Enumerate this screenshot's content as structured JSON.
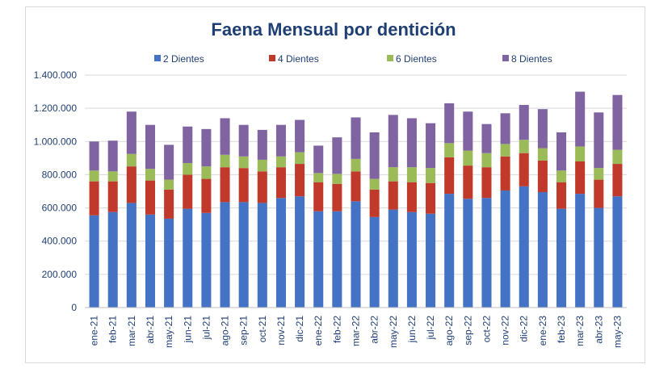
{
  "chart_data": {
    "type": "bar",
    "stacked": true,
    "title": "Faena Mensual por dentición",
    "xlabel": "",
    "ylabel": "",
    "ylim": [
      0,
      1400000
    ],
    "yticks": [
      "0",
      "200.000",
      "400.000",
      "600.000",
      "800.000",
      "1.000.000",
      "1.200.000",
      "1.400.000"
    ],
    "ytick_values": [
      0,
      200000,
      400000,
      600000,
      800000,
      1000000,
      1200000,
      1400000
    ],
    "grid": true,
    "legend_position": "top",
    "categories": [
      "ene-21",
      "feb-21",
      "mar-21",
      "abr-21",
      "may-21",
      "jun-21",
      "jul-21",
      "ago-21",
      "sep-21",
      "oct-21",
      "nov-21",
      "dic-21",
      "ene-22",
      "feb-22",
      "mar-22",
      "abr-22",
      "may-22",
      "jun-22",
      "jul-22",
      "ago-22",
      "sep-22",
      "oct-22",
      "nov-22",
      "dic-22",
      "ene-23",
      "feb-23",
      "mar-23",
      "abr-23",
      "may-23"
    ],
    "series": [
      {
        "name": "2 Dientes",
        "color": "#4472c4",
        "values": [
          555000,
          575000,
          630000,
          560000,
          535000,
          595000,
          570000,
          635000,
          635000,
          630000,
          660000,
          670000,
          580000,
          580000,
          640000,
          545000,
          590000,
          575000,
          565000,
          685000,
          655000,
          660000,
          705000,
          730000,
          695000,
          595000,
          685000,
          600000,
          670000
        ]
      },
      {
        "name": "4 Dientes",
        "color": "#c0392b",
        "values": [
          205000,
          185000,
          220000,
          205000,
          175000,
          205000,
          205000,
          210000,
          205000,
          190000,
          185000,
          195000,
          175000,
          165000,
          180000,
          165000,
          170000,
          180000,
          185000,
          220000,
          200000,
          185000,
          205000,
          200000,
          190000,
          160000,
          195000,
          170000,
          195000
        ]
      },
      {
        "name": "6 Dientes",
        "color": "#9bbb59",
        "values": [
          65000,
          60000,
          75000,
          70000,
          60000,
          70000,
          75000,
          75000,
          70000,
          70000,
          65000,
          70000,
          55000,
          60000,
          75000,
          65000,
          85000,
          90000,
          90000,
          85000,
          90000,
          85000,
          75000,
          80000,
          75000,
          70000,
          90000,
          70000,
          85000
        ]
      },
      {
        "name": "8 Dientes",
        "color": "#8064a2",
        "values": [
          175000,
          185000,
          255000,
          265000,
          210000,
          220000,
          225000,
          220000,
          190000,
          180000,
          190000,
          195000,
          165000,
          220000,
          250000,
          280000,
          315000,
          295000,
          270000,
          240000,
          235000,
          175000,
          185000,
          210000,
          235000,
          230000,
          330000,
          335000,
          330000
        ]
      }
    ]
  }
}
